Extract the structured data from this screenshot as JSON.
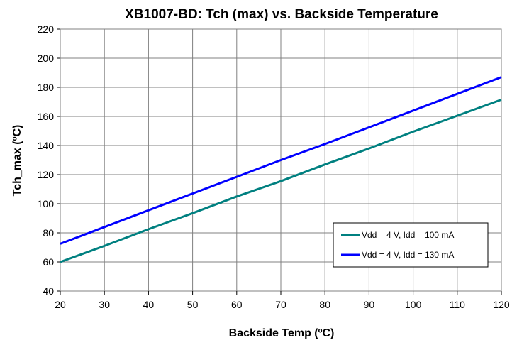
{
  "chart_data": {
    "type": "line",
    "title": "XB1007-BD: Tch (max) vs. Backside Temperature",
    "xlabel": "Backside Temp (ºC)",
    "ylabel": "Tch_max (ºC)",
    "xlim": [
      20,
      120
    ],
    "ylim": [
      40,
      220
    ],
    "xticks": [
      20,
      30,
      40,
      50,
      60,
      70,
      80,
      90,
      100,
      110,
      120
    ],
    "yticks": [
      40,
      60,
      80,
      100,
      120,
      140,
      160,
      180,
      200,
      220
    ],
    "grid": true,
    "legend_position": "bottom-right",
    "x": [
      20,
      30,
      40,
      50,
      60,
      70,
      80,
      90,
      100,
      110,
      120
    ],
    "series": [
      {
        "name": "Vdd = 4 V, Idd = 100 mA",
        "color": "#008080",
        "values": [
          60,
          71,
          82.5,
          93.5,
          105,
          115.5,
          127,
          138,
          149.5,
          160.5,
          171.5
        ]
      },
      {
        "name": "Vdd = 4 V, Idd = 130 mA",
        "color": "#0000ff",
        "values": [
          72.5,
          84,
          95.5,
          107,
          118.5,
          130,
          141,
          152.5,
          164,
          175.5,
          187
        ]
      }
    ]
  }
}
